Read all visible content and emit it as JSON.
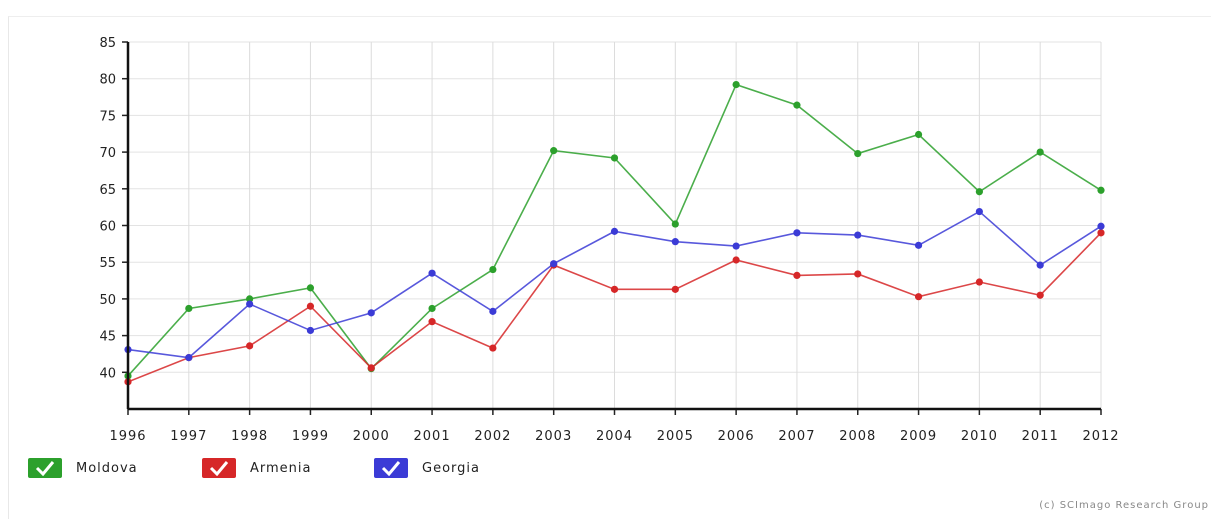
{
  "chart_data": {
    "type": "line",
    "title": "",
    "xlabel": "",
    "ylabel": "",
    "ylim": [
      35,
      85
    ],
    "y_ticks": [
      40,
      45,
      50,
      55,
      60,
      65,
      70,
      75,
      80,
      85
    ],
    "grid": true,
    "legend_position": "bottom-left",
    "categories": [
      "1996",
      "1997",
      "1998",
      "1999",
      "2000",
      "2001",
      "2002",
      "2003",
      "2004",
      "2005",
      "2006",
      "2007",
      "2008",
      "2009",
      "2010",
      "2011",
      "2012"
    ],
    "series": [
      {
        "name": "Moldova",
        "color": "#2ca02c",
        "values": [
          39.5,
          48.7,
          50.0,
          51.5,
          40.5,
          48.7,
          54.0,
          70.2,
          69.2,
          60.2,
          79.2,
          76.4,
          69.8,
          72.4,
          64.6,
          70.0,
          64.8
        ]
      },
      {
        "name": "Armenia",
        "color": "#d62728",
        "values": [
          38.7,
          42.0,
          43.6,
          49.0,
          40.6,
          46.9,
          43.3,
          54.6,
          51.3,
          51.3,
          55.3,
          53.2,
          53.4,
          50.3,
          52.3,
          50.5,
          59.0
        ]
      },
      {
        "name": "Georgia",
        "color": "#3b3bd6",
        "values": [
          43.1,
          42.0,
          49.3,
          45.7,
          48.1,
          53.5,
          48.3,
          54.8,
          59.2,
          57.8,
          57.2,
          59.0,
          58.7,
          57.3,
          61.9,
          54.6,
          59.9
        ]
      }
    ]
  },
  "legend": {
    "items": [
      {
        "label": "Moldova",
        "color": "#2ca02c"
      },
      {
        "label": "Armenia",
        "color": "#d62728"
      },
      {
        "label": "Georgia",
        "color": "#3b3bd6"
      }
    ]
  },
  "credit": "(c) SCImago Research Group"
}
